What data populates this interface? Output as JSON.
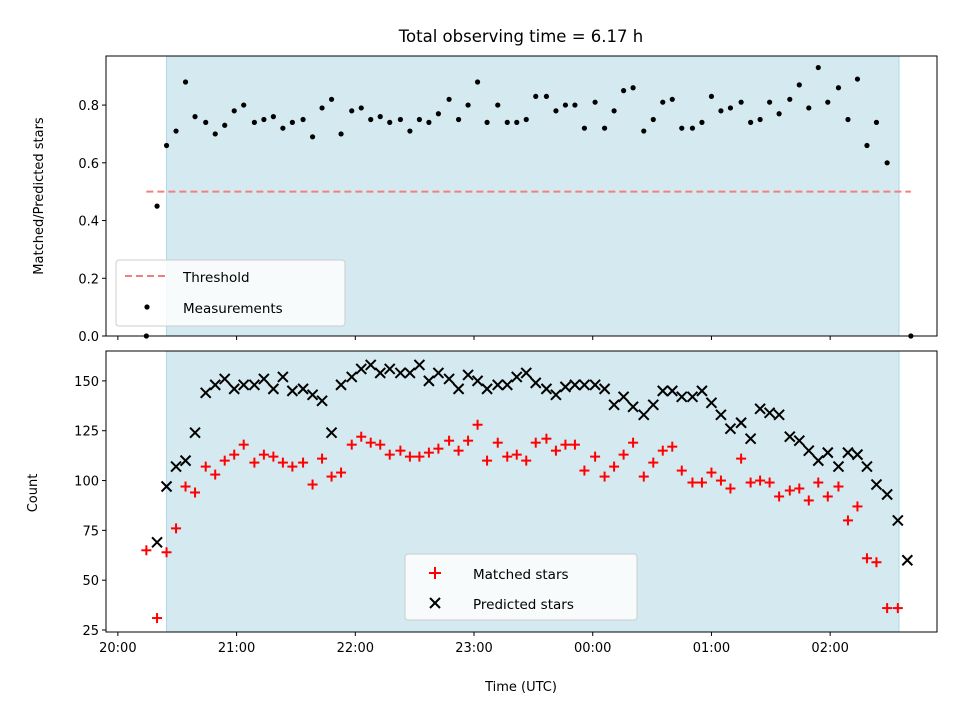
{
  "figure": {
    "title": "Total observing time = 6.17 h",
    "xlabel": "Time (UTC)",
    "x_tick_labels": [
      "20:00",
      "21:00",
      "22:00",
      "23:00",
      "00:00",
      "01:00",
      "02:00"
    ]
  },
  "colors": {
    "shade": "#d4eaf0",
    "threshold": "#f08080",
    "matched": "#ff0000",
    "predicted": "#000000"
  },
  "chart_data": [
    {
      "type": "scatter",
      "title": "Total observing time = 6.17 h",
      "ylabel": "Matched/Predicted stars",
      "x_unit": "hours since 20:00 UTC",
      "xlim": [
        -0.1,
        6.9
      ],
      "ylim": [
        0,
        0.97
      ],
      "yticks": [
        0.0,
        0.2,
        0.4,
        0.6,
        0.8
      ],
      "y_tick_labels": [
        "0.0",
        "0.2",
        "0.4",
        "0.6",
        "0.8"
      ],
      "grid": false,
      "legend": {
        "position": "lower left",
        "entries": [
          "Threshold",
          "Measurements"
        ]
      },
      "shaded_span": [
        0.41,
        6.58
      ],
      "threshold": {
        "name": "Threshold",
        "y": 0.5,
        "x": [
          0.24,
          6.68
        ]
      },
      "series": [
        {
          "name": "Measurements",
          "points": [
            [
              0.24,
              0.0
            ],
            [
              0.33,
              0.45
            ],
            [
              0.41,
              0.66
            ],
            [
              0.49,
              0.71
            ],
            [
              0.57,
              0.88
            ],
            [
              0.65,
              0.76
            ],
            [
              0.74,
              0.74
            ],
            [
              0.82,
              0.7
            ],
            [
              0.9,
              0.73
            ],
            [
              0.98,
              0.78
            ],
            [
              1.06,
              0.8
            ],
            [
              1.15,
              0.74
            ],
            [
              1.23,
              0.75
            ],
            [
              1.31,
              0.76
            ],
            [
              1.39,
              0.72
            ],
            [
              1.47,
              0.74
            ],
            [
              1.56,
              0.75
            ],
            [
              1.64,
              0.69
            ],
            [
              1.72,
              0.79
            ],
            [
              1.8,
              0.82
            ],
            [
              1.88,
              0.7
            ],
            [
              1.97,
              0.78
            ],
            [
              2.05,
              0.79
            ],
            [
              2.13,
              0.75
            ],
            [
              2.21,
              0.76
            ],
            [
              2.29,
              0.74
            ],
            [
              2.38,
              0.75
            ],
            [
              2.46,
              0.71
            ],
            [
              2.54,
              0.75
            ],
            [
              2.62,
              0.74
            ],
            [
              2.7,
              0.77
            ],
            [
              2.79,
              0.82
            ],
            [
              2.87,
              0.75
            ],
            [
              2.95,
              0.8
            ],
            [
              3.03,
              0.88
            ],
            [
              3.11,
              0.74
            ],
            [
              3.2,
              0.8
            ],
            [
              3.28,
              0.74
            ],
            [
              3.36,
              0.74
            ],
            [
              3.44,
              0.75
            ],
            [
              3.52,
              0.83
            ],
            [
              3.61,
              0.83
            ],
            [
              3.69,
              0.78
            ],
            [
              3.77,
              0.8
            ],
            [
              3.85,
              0.8
            ],
            [
              3.93,
              0.72
            ],
            [
              4.02,
              0.81
            ],
            [
              4.1,
              0.72
            ],
            [
              4.18,
              0.78
            ],
            [
              4.26,
              0.85
            ],
            [
              4.34,
              0.86
            ],
            [
              4.43,
              0.71
            ],
            [
              4.51,
              0.75
            ],
            [
              4.59,
              0.81
            ],
            [
              4.67,
              0.82
            ],
            [
              4.75,
              0.72
            ],
            [
              4.84,
              0.72
            ],
            [
              4.92,
              0.74
            ],
            [
              5.0,
              0.83
            ],
            [
              5.08,
              0.78
            ],
            [
              5.16,
              0.79
            ],
            [
              5.25,
              0.81
            ],
            [
              5.33,
              0.74
            ],
            [
              5.41,
              0.75
            ],
            [
              5.49,
              0.81
            ],
            [
              5.57,
              0.77
            ],
            [
              5.66,
              0.82
            ],
            [
              5.74,
              0.87
            ],
            [
              5.82,
              0.79
            ],
            [
              5.9,
              0.93
            ],
            [
              5.98,
              0.81
            ],
            [
              6.07,
              0.86
            ],
            [
              6.15,
              0.75
            ],
            [
              6.23,
              0.89
            ],
            [
              6.31,
              0.66
            ],
            [
              6.39,
              0.74
            ],
            [
              6.48,
              0.6
            ],
            [
              6.68,
              0.0
            ]
          ]
        }
      ]
    },
    {
      "type": "scatter",
      "ylabel": "Count",
      "xlabel": "Time (UTC)",
      "x_unit": "hours since 20:00 UTC",
      "xlim": [
        -0.1,
        6.9
      ],
      "ylim": [
        24,
        165
      ],
      "yticks": [
        25,
        50,
        75,
        100,
        125,
        150
      ],
      "y_tick_labels": [
        "25",
        "50",
        "75",
        "100",
        "125",
        "150"
      ],
      "x_tick_labels": [
        "20:00",
        "21:00",
        "22:00",
        "23:00",
        "00:00",
        "01:00",
        "02:00"
      ],
      "grid": false,
      "legend": {
        "position": "lower center",
        "entries": [
          "Matched stars",
          "Predicted stars"
        ]
      },
      "shaded_span": [
        0.41,
        6.58
      ],
      "series": [
        {
          "name": "Matched stars",
          "marker": "+",
          "points": [
            [
              0.24,
              65
            ],
            [
              0.33,
              31
            ],
            [
              0.41,
              64
            ],
            [
              0.49,
              76
            ],
            [
              0.57,
              97
            ],
            [
              0.65,
              94
            ],
            [
              0.74,
              107
            ],
            [
              0.82,
              103
            ],
            [
              0.9,
              110
            ],
            [
              0.98,
              113
            ],
            [
              1.06,
              118
            ],
            [
              1.15,
              109
            ],
            [
              1.23,
              113
            ],
            [
              1.31,
              112
            ],
            [
              1.39,
              109
            ],
            [
              1.47,
              107
            ],
            [
              1.56,
              109
            ],
            [
              1.64,
              98
            ],
            [
              1.72,
              111
            ],
            [
              1.8,
              102
            ],
            [
              1.88,
              104
            ],
            [
              1.97,
              118
            ],
            [
              2.05,
              122
            ],
            [
              2.13,
              119
            ],
            [
              2.21,
              118
            ],
            [
              2.29,
              113
            ],
            [
              2.38,
              115
            ],
            [
              2.46,
              112
            ],
            [
              2.54,
              112
            ],
            [
              2.62,
              114
            ],
            [
              2.7,
              116
            ],
            [
              2.79,
              120
            ],
            [
              2.87,
              115
            ],
            [
              2.95,
              120
            ],
            [
              3.03,
              128
            ],
            [
              3.11,
              110
            ],
            [
              3.2,
              119
            ],
            [
              3.28,
              112
            ],
            [
              3.36,
              113
            ],
            [
              3.44,
              110
            ],
            [
              3.52,
              119
            ],
            [
              3.61,
              121
            ],
            [
              3.69,
              115
            ],
            [
              3.77,
              118
            ],
            [
              3.85,
              118
            ],
            [
              3.93,
              105
            ],
            [
              4.02,
              112
            ],
            [
              4.1,
              102
            ],
            [
              4.18,
              107
            ],
            [
              4.26,
              113
            ],
            [
              4.34,
              119
            ],
            [
              4.43,
              102
            ],
            [
              4.51,
              109
            ],
            [
              4.59,
              115
            ],
            [
              4.67,
              117
            ],
            [
              4.75,
              105
            ],
            [
              4.84,
              99
            ],
            [
              4.92,
              99
            ],
            [
              5.0,
              104
            ],
            [
              5.08,
              100
            ],
            [
              5.16,
              96
            ],
            [
              5.25,
              111
            ],
            [
              5.33,
              99
            ],
            [
              5.41,
              100
            ],
            [
              5.49,
              99
            ],
            [
              5.57,
              92
            ],
            [
              5.66,
              95
            ],
            [
              5.74,
              96
            ],
            [
              5.82,
              90
            ],
            [
              5.9,
              99
            ],
            [
              5.98,
              92
            ],
            [
              6.07,
              97
            ],
            [
              6.15,
              80
            ],
            [
              6.23,
              87
            ],
            [
              6.31,
              61
            ],
            [
              6.39,
              59
            ],
            [
              6.48,
              36
            ],
            [
              6.57,
              36
            ]
          ]
        },
        {
          "name": "Predicted stars",
          "marker": "x",
          "points": [
            [
              0.33,
              69
            ],
            [
              0.41,
              97
            ],
            [
              0.49,
              107
            ],
            [
              0.57,
              110
            ],
            [
              0.65,
              124
            ],
            [
              0.74,
              144
            ],
            [
              0.82,
              148
            ],
            [
              0.9,
              151
            ],
            [
              0.98,
              146
            ],
            [
              1.06,
              148
            ],
            [
              1.15,
              148
            ],
            [
              1.23,
              151
            ],
            [
              1.31,
              146
            ],
            [
              1.39,
              152
            ],
            [
              1.47,
              145
            ],
            [
              1.56,
              146
            ],
            [
              1.64,
              143
            ],
            [
              1.72,
              140
            ],
            [
              1.8,
              124
            ],
            [
              1.88,
              148
            ],
            [
              1.97,
              152
            ],
            [
              2.05,
              156
            ],
            [
              2.13,
              158
            ],
            [
              2.21,
              154
            ],
            [
              2.29,
              156
            ],
            [
              2.38,
              154
            ],
            [
              2.46,
              154
            ],
            [
              2.54,
              158
            ],
            [
              2.62,
              150
            ],
            [
              2.7,
              154
            ],
            [
              2.79,
              151
            ],
            [
              2.87,
              146
            ],
            [
              2.95,
              153
            ],
            [
              3.03,
              150
            ],
            [
              3.11,
              146
            ],
            [
              3.2,
              148
            ],
            [
              3.28,
              148
            ],
            [
              3.36,
              152
            ],
            [
              3.44,
              154
            ],
            [
              3.52,
              149
            ],
            [
              3.61,
              146
            ],
            [
              3.69,
              143
            ],
            [
              3.77,
              147
            ],
            [
              3.85,
              148
            ],
            [
              3.93,
              148
            ],
            [
              4.02,
              148
            ],
            [
              4.1,
              146
            ],
            [
              4.18,
              138
            ],
            [
              4.26,
              142
            ],
            [
              4.34,
              137
            ],
            [
              4.43,
              133
            ],
            [
              4.51,
              138
            ],
            [
              4.59,
              145
            ],
            [
              4.67,
              145
            ],
            [
              4.75,
              142
            ],
            [
              4.84,
              142
            ],
            [
              4.92,
              145
            ],
            [
              5.0,
              139
            ],
            [
              5.08,
              133
            ],
            [
              5.16,
              126
            ],
            [
              5.25,
              129
            ],
            [
              5.33,
              121
            ],
            [
              5.41,
              136
            ],
            [
              5.49,
              134
            ],
            [
              5.57,
              133
            ],
            [
              5.66,
              122
            ],
            [
              5.74,
              120
            ],
            [
              5.82,
              115
            ],
            [
              5.9,
              110
            ],
            [
              5.98,
              114
            ],
            [
              6.07,
              107
            ],
            [
              6.15,
              114
            ],
            [
              6.23,
              113
            ],
            [
              6.31,
              107
            ],
            [
              6.39,
              98
            ],
            [
              6.48,
              93
            ],
            [
              6.57,
              80
            ],
            [
              6.65,
              60
            ]
          ]
        }
      ]
    }
  ]
}
